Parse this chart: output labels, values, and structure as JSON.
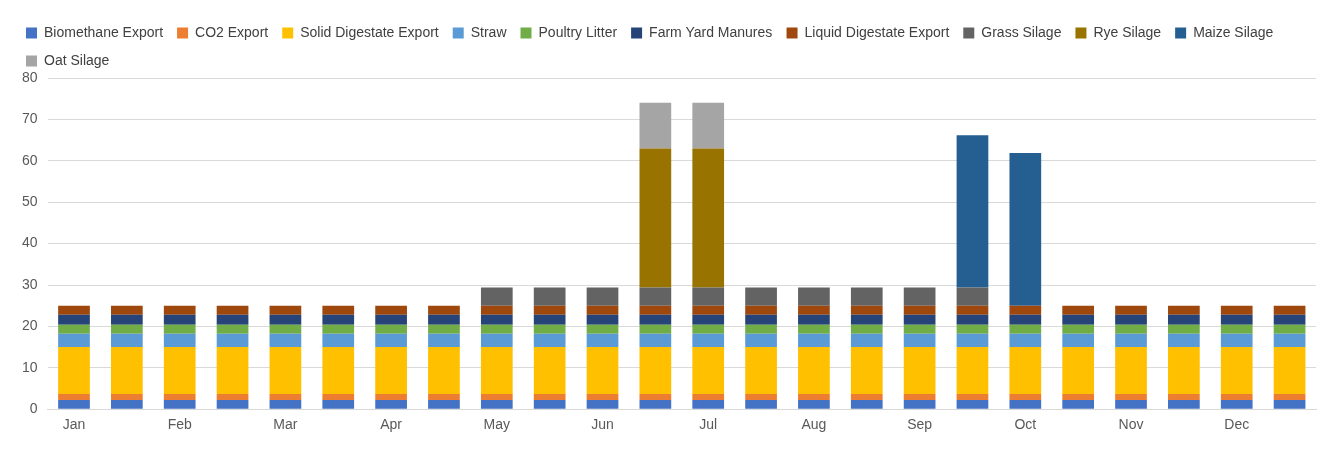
{
  "chart_data": {
    "type": "bar",
    "stacked": true,
    "categories": [
      "Jan",
      null,
      "Feb",
      null,
      "Mar",
      null,
      "Apr",
      null,
      "May",
      null,
      "Jun",
      null,
      "Jul",
      null,
      "Aug",
      null,
      "Sep",
      null,
      "Oct",
      null,
      "Nov",
      null,
      "Dec",
      null
    ],
    "series": [
      {
        "name": "Biomethane Export",
        "color": "#4472c4",
        "values": [
          2.2,
          2.2,
          2.2,
          2.2,
          2.2,
          2.2,
          2.2,
          2.2,
          2.2,
          2.2,
          2.2,
          2.2,
          2.2,
          2.2,
          2.2,
          2.2,
          2.2,
          2.2,
          2.2,
          2.2,
          2.2,
          2.2,
          2.2,
          2.2
        ]
      },
      {
        "name": "CO2 Export",
        "color": "#ed7d31",
        "values": [
          1.5,
          1.5,
          1.5,
          1.5,
          1.5,
          1.5,
          1.5,
          1.5,
          1.5,
          1.5,
          1.5,
          1.5,
          1.5,
          1.5,
          1.5,
          1.5,
          1.5,
          1.5,
          1.5,
          1.5,
          1.5,
          1.5,
          1.5,
          1.5
        ]
      },
      {
        "name": "Solid Digestate Export",
        "color": "#ffc000",
        "values": [
          11.3,
          11.3,
          11.3,
          11.3,
          11.3,
          11.3,
          11.3,
          11.3,
          11.3,
          11.3,
          11.3,
          11.3,
          11.3,
          11.3,
          11.3,
          11.3,
          11.3,
          11.3,
          11.3,
          11.3,
          11.3,
          11.3,
          11.3,
          11.3
        ]
      },
      {
        "name": "Straw",
        "color": "#5b9bd5",
        "values": [
          3.2,
          3.2,
          3.2,
          3.2,
          3.2,
          3.2,
          3.2,
          3.2,
          3.2,
          3.2,
          3.2,
          3.2,
          3.2,
          3.2,
          3.2,
          3.2,
          3.2,
          3.2,
          3.2,
          3.2,
          3.2,
          3.2,
          3.2,
          3.2
        ]
      },
      {
        "name": "Poultry Litter",
        "color": "#70ad47",
        "values": [
          2.2,
          2.2,
          2.2,
          2.2,
          2.2,
          2.2,
          2.2,
          2.2,
          2.2,
          2.2,
          2.2,
          2.2,
          2.2,
          2.2,
          2.2,
          2.2,
          2.2,
          2.2,
          2.2,
          2.2,
          2.2,
          2.2,
          2.2,
          2.2
        ]
      },
      {
        "name": "Farm Yard Manures",
        "color": "#264478",
        "values": [
          2.4,
          2.4,
          2.4,
          2.4,
          2.4,
          2.4,
          2.4,
          2.4,
          2.4,
          2.4,
          2.4,
          2.4,
          2.4,
          2.4,
          2.4,
          2.4,
          2.4,
          2.4,
          2.4,
          2.4,
          2.4,
          2.4,
          2.4,
          2.4
        ]
      },
      {
        "name": "Liquid Digestate Export",
        "color": "#9e480e",
        "values": [
          2.2,
          2.2,
          2.2,
          2.2,
          2.2,
          2.2,
          2.2,
          2.2,
          2.2,
          2.2,
          2.2,
          2.2,
          2.2,
          2.2,
          2.2,
          2.2,
          2.2,
          2.2,
          2.2,
          2.2,
          2.2,
          2.2,
          2.2,
          2.2
        ]
      },
      {
        "name": "Grass Silage",
        "color": "#636363",
        "values": [
          null,
          null,
          null,
          null,
          null,
          null,
          null,
          null,
          4.4,
          4.4,
          4.4,
          4.4,
          4.4,
          4.4,
          4.4,
          4.4,
          4.4,
          4.4,
          null,
          null,
          null,
          null,
          null,
          null
        ]
      },
      {
        "name": "Rye Silage",
        "color": "#997300",
        "values": [
          null,
          null,
          null,
          null,
          null,
          null,
          null,
          null,
          null,
          null,
          null,
          33.6,
          33.6,
          null,
          null,
          null,
          null,
          null,
          null,
          null,
          null,
          null,
          null,
          null
        ]
      },
      {
        "name": "Maize Silage",
        "color": "#255e91",
        "values": [
          null,
          null,
          null,
          null,
          null,
          null,
          null,
          null,
          null,
          null,
          null,
          null,
          null,
          null,
          null,
          null,
          null,
          36.8,
          36.9,
          null,
          null,
          null,
          null,
          null
        ]
      },
      {
        "name": "Oat Silage",
        "color": "#a5a5a5",
        "values": [
          null,
          null,
          null,
          null,
          null,
          null,
          null,
          null,
          null,
          null,
          null,
          11,
          11,
          null,
          null,
          null,
          null,
          null,
          null,
          null,
          null,
          null,
          null,
          null
        ]
      }
    ],
    "ylim": [
      0,
      80
    ],
    "yticks": [
      0,
      10,
      20,
      30,
      40,
      50,
      60,
      70,
      80
    ],
    "grid": "y",
    "legend": "top"
  }
}
